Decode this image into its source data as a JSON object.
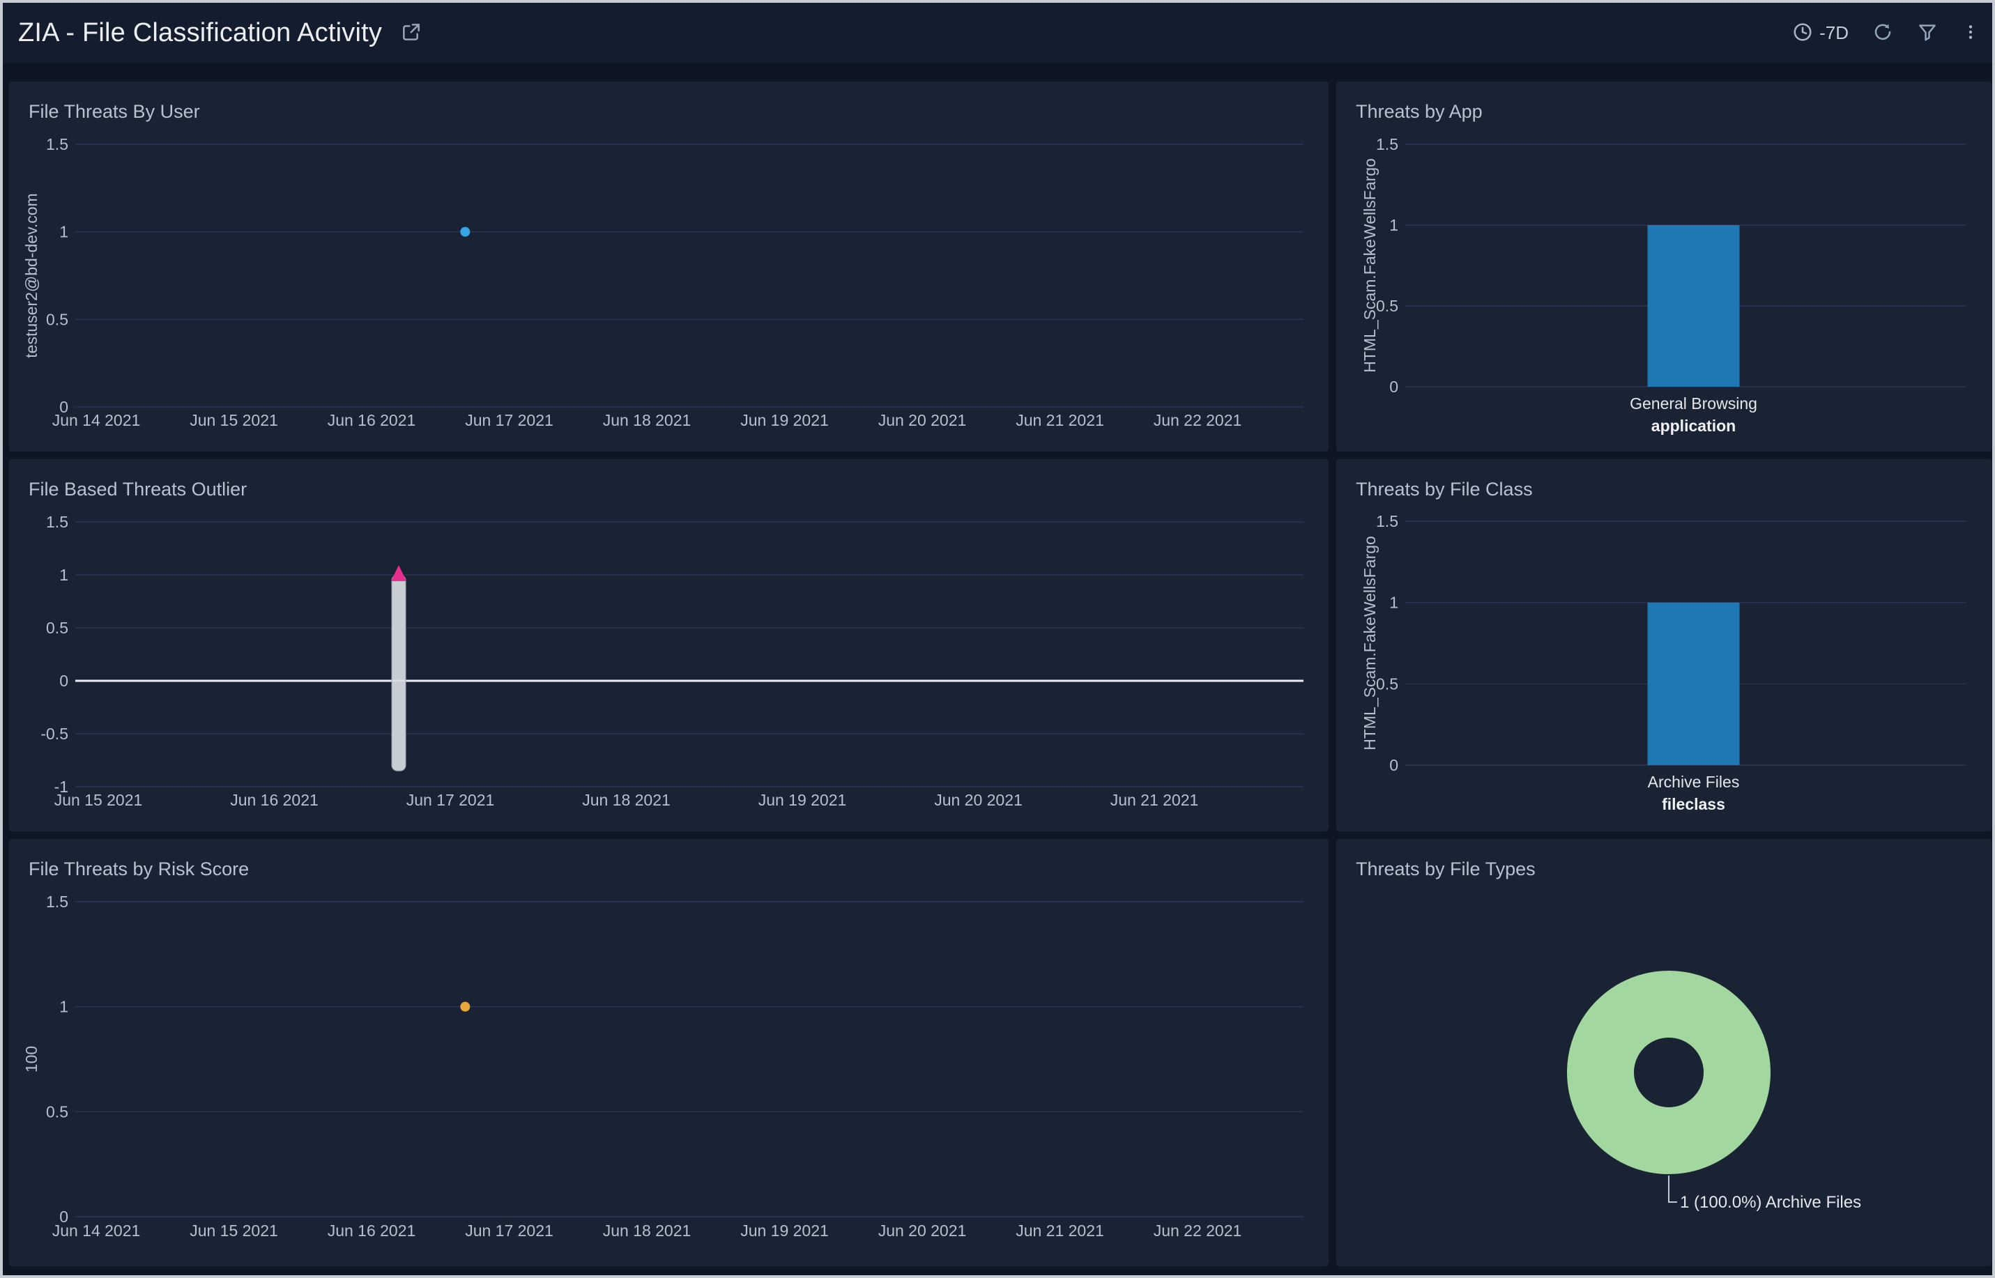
{
  "header": {
    "title": "ZIA - File Classification Activity",
    "time_range": "-7D",
    "icons": {
      "share": "open-in-new-icon",
      "time": "clock-icon",
      "refresh": "refresh-icon",
      "filter": "filter-icon",
      "menu": "kebab-icon"
    }
  },
  "colors": {
    "page_bg": "#0e1624",
    "header_bg": "#141d2e",
    "panel_bg": "#1a2333",
    "grid": "#2a3452",
    "tick_text": "#b6c0cd",
    "accent_blue": "#1f77b4",
    "dot_blue": "#35a5e5",
    "dot_orange": "#e9a63a",
    "magenta": "#e62e8f",
    "donut_green": "#a3d7a0",
    "zero_line": "#e9edf2",
    "band_fill": "#d7dbe1"
  },
  "chart_data": [
    {
      "id": "file-threats-by-user",
      "type": "scatter",
      "title": "File Threats By User",
      "ylabel": "testuser2@bd-dev.com",
      "ylim": [
        0,
        1.5
      ],
      "yticks": [
        0,
        0.5,
        1,
        1.5
      ],
      "xticks": [
        "Jun 14 2021",
        "Jun 15 2021",
        "Jun 16 2021",
        "Jun 17 2021",
        "Jun 18 2021",
        "Jun 19 2021",
        "Jun 20 2021",
        "Jun 21 2021",
        "Jun 22 2021"
      ],
      "grid": true,
      "legend": "none",
      "points": [
        {
          "x": "Jun 16 2021 (late)",
          "x_frac": 0.335,
          "y": 1,
          "series": "testuser2@bd-dev.com",
          "color": "#35a5e5"
        }
      ]
    },
    {
      "id": "threats-by-app",
      "type": "bar",
      "title": "Threats by App",
      "xlabel": "application",
      "ylabel": "HTML_Scam.FakeWellsFargo",
      "ylim": [
        0,
        1.5
      ],
      "yticks": [
        0,
        0.5,
        1,
        1.5
      ],
      "grid": true,
      "categories": [
        "General Browsing"
      ],
      "values": [
        1
      ],
      "bar_color": "#1f77b4"
    },
    {
      "id": "file-based-threats-outlier",
      "type": "outlier",
      "title": "File Based Threats Outlier",
      "ylim": [
        -1,
        1.5
      ],
      "yticks": [
        -1,
        -0.5,
        0,
        0.5,
        1,
        1.5
      ],
      "xticks": [
        "Jun 15 2021",
        "Jun 16 2021",
        "Jun 17 2021",
        "Jun 18 2021",
        "Jun 19 2021",
        "Jun 20 2021",
        "Jun 21 2021"
      ],
      "grid": true,
      "baseline": 0,
      "band": {
        "x": "Jun 16 2021 (late)",
        "x_frac": 0.2845,
        "y_low": -0.85,
        "y_high": 1,
        "color": "#d7dbe1"
      },
      "marker": {
        "x": "Jun 16 2021 (late)",
        "x_frac": 0.2845,
        "y": 1,
        "shape": "triangle-up",
        "color": "#e62e8f"
      }
    },
    {
      "id": "threats-by-file-class",
      "type": "bar",
      "title": "Threats by File Class",
      "xlabel": "fileclass",
      "ylabel": "HTML_Scam.FakeWellsFargo",
      "ylim": [
        0,
        1.5
      ],
      "yticks": [
        0,
        0.5,
        1,
        1.5
      ],
      "grid": true,
      "categories": [
        "Archive Files"
      ],
      "values": [
        1
      ],
      "bar_color": "#1f77b4"
    },
    {
      "id": "file-threats-by-risk-score",
      "type": "scatter",
      "title": "File Threats by Risk Score",
      "ylabel": "100",
      "ylim": [
        0,
        1.5
      ],
      "yticks": [
        0,
        0.5,
        1,
        1.5
      ],
      "xticks": [
        "Jun 14 2021",
        "Jun 15 2021",
        "Jun 16 2021",
        "Jun 17 2021",
        "Jun 18 2021",
        "Jun 19 2021",
        "Jun 20 2021",
        "Jun 21 2021",
        "Jun 22 2021"
      ],
      "grid": true,
      "points": [
        {
          "x": "Jun 16 2021 (late)",
          "x_frac": 0.335,
          "y": 1,
          "series": "100",
          "color": "#e9a63a"
        }
      ]
    },
    {
      "id": "threats-by-file-types",
      "type": "donut",
      "title": "Threats by File Types",
      "slices": [
        {
          "label": "Archive Files",
          "value": 1,
          "pct": 100.0,
          "color": "#a3d7a0"
        }
      ],
      "callout": "1 (100.0%) Archive Files"
    }
  ]
}
